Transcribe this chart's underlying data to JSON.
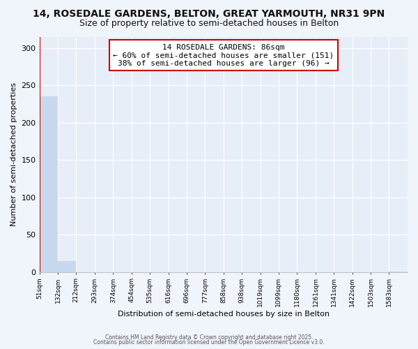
{
  "title": "14, ROSEDALE GARDENS, BELTON, GREAT YARMOUTH, NR31 9PN",
  "subtitle": "Size of property relative to semi-detached houses in Belton",
  "xlabel": "Distribution of semi-detached houses by size in Belton",
  "ylabel": "Number of semi-detached properties",
  "bar_values": [
    235,
    15,
    0,
    0,
    0,
    0,
    0,
    0,
    0,
    0,
    0,
    0,
    0,
    0,
    0,
    0,
    0,
    0,
    0,
    1
  ],
  "bin_edges": [
    51,
    132,
    212,
    293,
    374,
    454,
    535,
    616,
    696,
    777,
    858,
    938,
    1019,
    1099,
    1180,
    1261,
    1341,
    1422,
    1503,
    1583,
    1664
  ],
  "bar_color": "#c8d8ee",
  "property_size": 86,
  "property_label": "14 ROSEDALE GARDENS: 86sqm",
  "annotation_line1": "← 60% of semi-detached houses are smaller (151)",
  "annotation_line2": "38% of semi-detached houses are larger (96) →",
  "red_line_color": "#cc0000",
  "annotation_box_color": "#cc0000",
  "ylim": [
    0,
    315
  ],
  "yticks": [
    0,
    50,
    100,
    150,
    200,
    250,
    300
  ],
  "footer_line1": "Contains HM Land Registry data © Crown copyright and database right 2025.",
  "footer_line2": "Contains public sector information licensed under the Open Government Licence v3.0.",
  "background_color": "#f0f4fb",
  "plot_bg_color": "#e8eef8",
  "grid_color": "#ffffff",
  "title_fontsize": 10,
  "subtitle_fontsize": 9
}
